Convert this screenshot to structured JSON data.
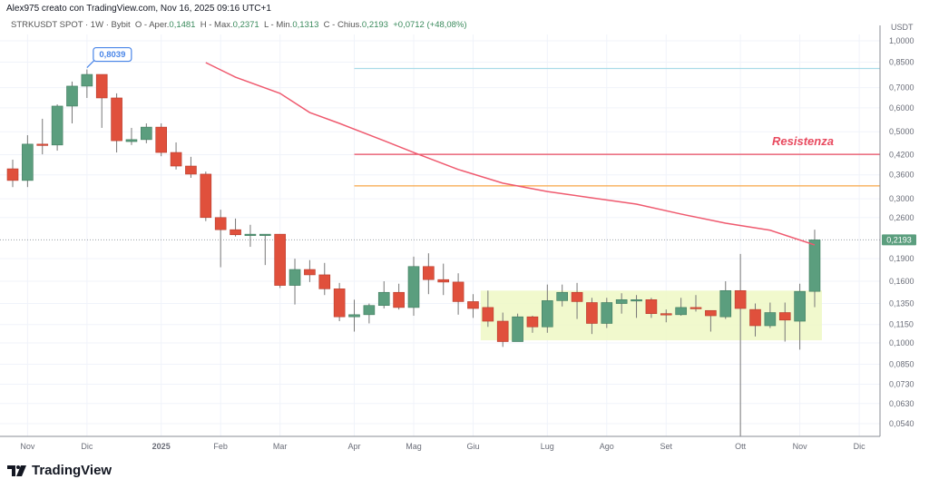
{
  "header": {
    "credit": "Alex975 creato con TradingView.com, Nov 16, 2025 09:16 UTC+1",
    "symbol": "STRKUSDT SPOT · 1W · Bybit",
    "open_label": "O - Aper.",
    "open": "0,1481",
    "high_label": "H - Max.",
    "high": "0,2371",
    "low_label": "L - Min.",
    "low": "0,1313",
    "close_label": "C - Chius.",
    "close": "0,2193",
    "change": "+0,0712 (+48,08%)"
  },
  "logo": {
    "text": "TradingView"
  },
  "colors": {
    "up": "#5b9e7e",
    "down": "#e0503c",
    "ma": "#ef5a6f",
    "resistance": "#e84a5f",
    "orange_line": "#f7a646",
    "blue_line": "#a9dbe8",
    "range_box": "#eef8c4",
    "callout": "#4a86e8",
    "price_badge": "#5b9e7e"
  },
  "chart_data": {
    "type": "candlestick",
    "y_scale": "log",
    "y_unit": "USDT",
    "ylim": [
      0.05,
      1.1
    ],
    "grid": true,
    "y_ticks": [
      "1,0000",
      "0,8500",
      "0,7000",
      "0,6000",
      "0,5000",
      "0,4200",
      "0,3600",
      "0,3000",
      "0,2600",
      "0,1900",
      "0,1600",
      "0,1350",
      "0,1150",
      "0,1000",
      "0,0850",
      "0,0730",
      "0,0630",
      "0,0540"
    ],
    "x_labels": [
      "Nov",
      "Dic",
      "2025",
      "Feb",
      "Mar",
      "Apr",
      "Mag",
      "Giu",
      "Lug",
      "Ago",
      "Set",
      "Ott",
      "Nov",
      "Dic"
    ],
    "current_price": {
      "value": 0.2193,
      "label": "0,2193"
    },
    "candles": [
      [
        "2024-10-28",
        0.377,
        0.404,
        0.328,
        0.345
      ],
      [
        "2024-11-04",
        0.345,
        0.487,
        0.328,
        0.455
      ],
      [
        "2024-11-11",
        0.455,
        0.552,
        0.421,
        0.452
      ],
      [
        "2024-11-18",
        0.452,
        0.616,
        0.433,
        0.608
      ],
      [
        "2024-11-25",
        0.608,
        0.733,
        0.533,
        0.708
      ],
      [
        "2024-12-02",
        0.708,
        0.8039,
        0.647,
        0.774
      ],
      [
        "2024-12-09",
        0.774,
        0.774,
        0.515,
        0.647
      ],
      [
        "2024-12-16",
        0.647,
        0.67,
        0.427,
        0.467
      ],
      [
        "2024-12-23",
        0.464,
        0.515,
        0.452,
        0.471
      ],
      [
        "2024-12-30",
        0.471,
        0.533,
        0.458,
        0.518
      ],
      [
        "2025-01-06",
        0.518,
        0.533,
        0.415,
        0.427
      ],
      [
        "2025-01-13",
        0.427,
        0.461,
        0.375,
        0.385
      ],
      [
        "2025-01-20",
        0.385,
        0.413,
        0.352,
        0.362
      ],
      [
        "2025-01-27",
        0.362,
        0.369,
        0.253,
        0.26
      ],
      [
        "2025-02-03",
        0.26,
        0.276,
        0.178,
        0.237
      ],
      [
        "2025-02-10",
        0.237,
        0.258,
        0.225,
        0.228
      ],
      [
        "2025-02-17",
        0.229,
        0.246,
        0.208,
        0.229
      ],
      [
        "2025-02-24",
        0.229,
        0.229,
        0.181,
        0.229
      ],
      [
        "2025-03-03",
        0.229,
        0.229,
        0.152,
        0.155
      ],
      [
        "2025-03-10",
        0.155,
        0.19,
        0.134,
        0.175
      ],
      [
        "2025-03-17",
        0.175,
        0.188,
        0.159,
        0.168
      ],
      [
        "2025-03-24",
        0.168,
        0.184,
        0.144,
        0.151
      ],
      [
        "2025-03-31",
        0.151,
        0.158,
        0.118,
        0.122
      ],
      [
        "2025-04-07",
        0.122,
        0.139,
        0.109,
        0.124
      ],
      [
        "2025-04-14",
        0.124,
        0.135,
        0.116,
        0.133
      ],
      [
        "2025-04-21",
        0.133,
        0.16,
        0.13,
        0.147
      ],
      [
        "2025-04-28",
        0.147,
        0.157,
        0.129,
        0.131
      ],
      [
        "2025-05-05",
        0.131,
        0.193,
        0.123,
        0.179
      ],
      [
        "2025-05-12",
        0.179,
        0.198,
        0.145,
        0.162
      ],
      [
        "2025-05-19",
        0.162,
        0.183,
        0.144,
        0.159
      ],
      [
        "2025-05-26",
        0.159,
        0.17,
        0.124,
        0.137
      ],
      [
        "2025-06-02",
        0.137,
        0.145,
        0.121,
        0.13
      ],
      [
        "2025-06-09",
        0.131,
        0.149,
        0.113,
        0.118
      ],
      [
        "2025-06-16",
        0.118,
        0.126,
        0.097,
        0.101
      ],
      [
        "2025-06-23",
        0.101,
        0.125,
        0.101,
        0.122
      ],
      [
        "2025-06-30",
        0.122,
        0.123,
        0.108,
        0.113
      ],
      [
        "2025-07-07",
        0.113,
        0.156,
        0.108,
        0.138
      ],
      [
        "2025-07-14",
        0.138,
        0.156,
        0.132,
        0.147
      ],
      [
        "2025-07-21",
        0.147,
        0.158,
        0.12,
        0.137
      ],
      [
        "2025-07-28",
        0.136,
        0.141,
        0.107,
        0.116
      ],
      [
        "2025-08-04",
        0.116,
        0.141,
        0.112,
        0.136
      ],
      [
        "2025-08-11",
        0.135,
        0.146,
        0.125,
        0.139
      ],
      [
        "2025-08-18",
        0.139,
        0.144,
        0.121,
        0.139
      ],
      [
        "2025-08-25",
        0.139,
        0.141,
        0.121,
        0.125
      ],
      [
        "2025-09-01",
        0.125,
        0.129,
        0.117,
        0.124
      ],
      [
        "2025-09-08",
        0.124,
        0.141,
        0.123,
        0.131
      ],
      [
        "2025-09-15",
        0.131,
        0.144,
        0.127,
        0.13
      ],
      [
        "2025-09-22",
        0.128,
        0.128,
        0.109,
        0.123
      ],
      [
        "2025-09-29",
        0.122,
        0.16,
        0.12,
        0.149
      ],
      [
        "2025-10-06",
        0.149,
        0.197,
        0.049,
        0.13
      ],
      [
        "2025-10-13",
        0.129,
        0.135,
        0.105,
        0.114
      ],
      [
        "2025-10-20",
        0.114,
        0.136,
        0.112,
        0.126
      ],
      [
        "2025-10-27",
        0.126,
        0.136,
        0.101,
        0.119
      ],
      [
        "2025-11-03",
        0.118,
        0.157,
        0.095,
        0.1481
      ],
      [
        "2025-11-10",
        0.1481,
        0.2371,
        0.1313,
        0.2193
      ]
    ],
    "moving_average": [
      [
        "2025-01-27",
        0.847
      ],
      [
        "2025-02-10",
        0.758
      ],
      [
        "2025-03-03",
        0.67
      ],
      [
        "2025-03-17",
        0.579
      ],
      [
        "2025-03-31",
        0.533
      ],
      [
        "2025-04-21",
        0.467
      ],
      [
        "2025-05-05",
        0.427
      ],
      [
        "2025-05-26",
        0.375
      ],
      [
        "2025-06-16",
        0.338
      ],
      [
        "2025-07-07",
        0.317
      ],
      [
        "2025-07-28",
        0.302
      ],
      [
        "2025-08-18",
        0.288
      ],
      [
        "2025-09-08",
        0.267
      ],
      [
        "2025-09-29",
        0.249
      ],
      [
        "2025-10-20",
        0.236
      ],
      [
        "2025-11-10",
        0.211
      ]
    ],
    "horizontal_lines": [
      {
        "value": 0.81,
        "color": "#a9dbe8",
        "from": "2025-04-07"
      },
      {
        "value": 0.421,
        "color": "#e84a5f",
        "from": "2025-04-07",
        "label": "Resistenza"
      },
      {
        "value": 0.331,
        "color": "#f7a646",
        "from": "2025-04-07"
      }
    ],
    "range_box": {
      "from": "2025-06-09",
      "to": "2025-11-10",
      "top": 0.149,
      "bottom": 0.102
    },
    "annotations": [
      {
        "date": "2024-12-02",
        "value": 0.8039,
        "label": "0,8039"
      }
    ]
  }
}
